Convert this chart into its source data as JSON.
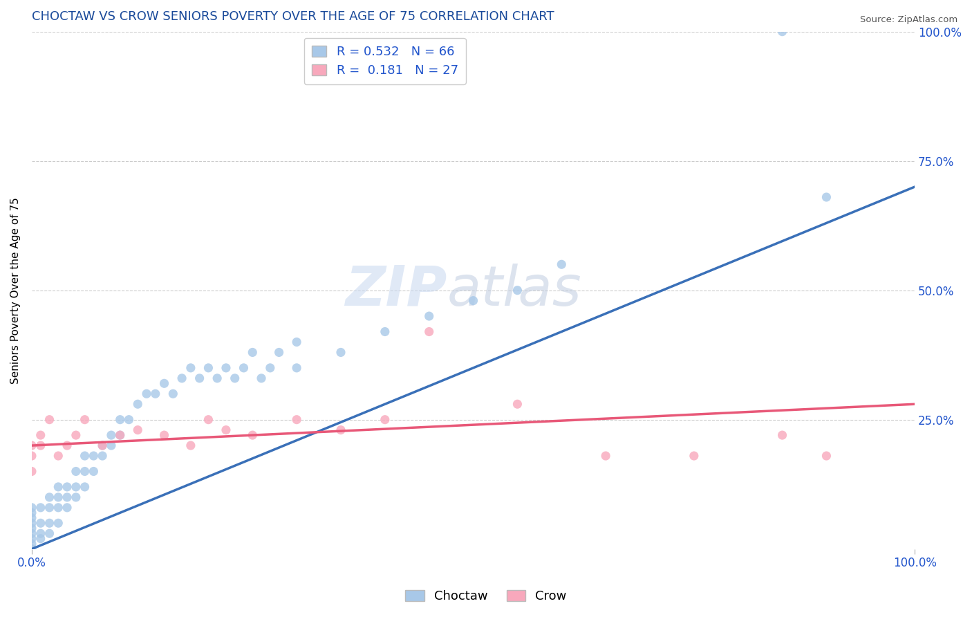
{
  "title": "CHOCTAW VS CROW SENIORS POVERTY OVER THE AGE OF 75 CORRELATION CHART",
  "source_text": "Source: ZipAtlas.com",
  "ylabel": "Seniors Poverty Over the Age of 75",
  "watermark_zip": "ZIP",
  "watermark_atlas": "atlas",
  "choctaw_R": 0.532,
  "choctaw_N": 66,
  "crow_R": 0.181,
  "crow_N": 27,
  "choctaw_color": "#a8c8e8",
  "choctaw_line_color": "#3a70b8",
  "crow_color": "#f8a8bc",
  "crow_line_color": "#e85878",
  "background_color": "#ffffff",
  "grid_color": "#cccccc",
  "title_color": "#1a4a9a",
  "axis_label_color": "#2255cc",
  "tick_label_color": "#2255cc",
  "choctaw_slope": 0.7,
  "choctaw_intercept": 0.0,
  "crow_slope": 0.08,
  "crow_intercept": 20.0,
  "xlim": [
    0,
    100
  ],
  "ylim": [
    0,
    100
  ],
  "yticks": [
    0,
    25,
    50,
    75,
    100
  ],
  "ytick_labels": [
    "",
    "25.0%",
    "50.0%",
    "75.0%",
    "100.0%"
  ],
  "xtick_labels": [
    "0.0%",
    "100.0%"
  ],
  "legend_box_color": "#ffffff",
  "legend_border_color": "#cccccc",
  "choctaw_x": [
    0,
    0,
    0,
    0,
    0,
    0,
    0,
    0,
    0,
    1,
    1,
    1,
    1,
    2,
    2,
    2,
    2,
    3,
    3,
    3,
    3,
    4,
    4,
    4,
    5,
    5,
    5,
    6,
    6,
    6,
    7,
    7,
    8,
    8,
    9,
    9,
    10,
    10,
    11,
    12,
    13,
    14,
    15,
    16,
    17,
    18,
    19,
    20,
    21,
    22,
    23,
    24,
    25,
    26,
    27,
    28,
    30,
    30,
    35,
    40,
    45,
    50,
    55,
    60,
    85,
    90
  ],
  "choctaw_y": [
    0,
    1,
    2,
    3,
    4,
    5,
    6,
    7,
    8,
    2,
    3,
    5,
    8,
    3,
    5,
    8,
    10,
    5,
    8,
    10,
    12,
    8,
    10,
    12,
    10,
    12,
    15,
    12,
    15,
    18,
    15,
    18,
    18,
    20,
    20,
    22,
    22,
    25,
    25,
    28,
    30,
    30,
    32,
    30,
    33,
    35,
    33,
    35,
    33,
    35,
    33,
    35,
    38,
    33,
    35,
    38,
    40,
    35,
    38,
    42,
    45,
    48,
    50,
    55,
    100,
    68
  ],
  "crow_x": [
    0,
    0,
    0,
    1,
    1,
    2,
    3,
    4,
    5,
    6,
    8,
    10,
    12,
    15,
    18,
    20,
    22,
    25,
    30,
    35,
    40,
    45,
    55,
    65,
    75,
    85,
    90
  ],
  "crow_y": [
    20,
    18,
    15,
    22,
    20,
    25,
    18,
    20,
    22,
    25,
    20,
    22,
    23,
    22,
    20,
    25,
    23,
    22,
    25,
    23,
    25,
    42,
    28,
    18,
    18,
    22,
    18
  ]
}
